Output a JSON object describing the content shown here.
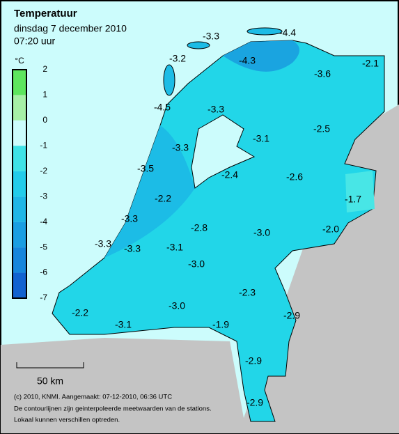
{
  "header": {
    "title": "Temperatuur",
    "date": "dinsdag 7 december 2010",
    "time": "07:20 uur"
  },
  "legend": {
    "unit": "°C",
    "ticks": [
      "2",
      "1",
      "0",
      "-1",
      "-2",
      "-3",
      "-4",
      "-5",
      "-6",
      "-7"
    ]
  },
  "stations": [
    "-3.3",
    "-4.4",
    "-3.2",
    "-4.3",
    "-3.6",
    "-2.1",
    "-4.5",
    "-3.3",
    "-3.1",
    "-2.5",
    "-3.3",
    "-3.5",
    "-2.4",
    "-2.6",
    "-1.7",
    "-2.2",
    "-3.3",
    "-2.8",
    "-3.0",
    "-2.0",
    "-3.3",
    "-3.3",
    "-3.1",
    "-3.0",
    "-2.3",
    "-2.2",
    "-3.0",
    "-2.9",
    "-3.1",
    "-1.9",
    "-2.9",
    "-2.9"
  ],
  "scale": "50 km",
  "footer": [
    "(c) 2010, KNMI. Aangemaakt: 07-12-2010, 06:36 UTC",
    "De contourlijnen zijn geinterpoleerde meetwaarden van de stations.",
    "Lokaal kunnen verschillen optreden."
  ]
}
